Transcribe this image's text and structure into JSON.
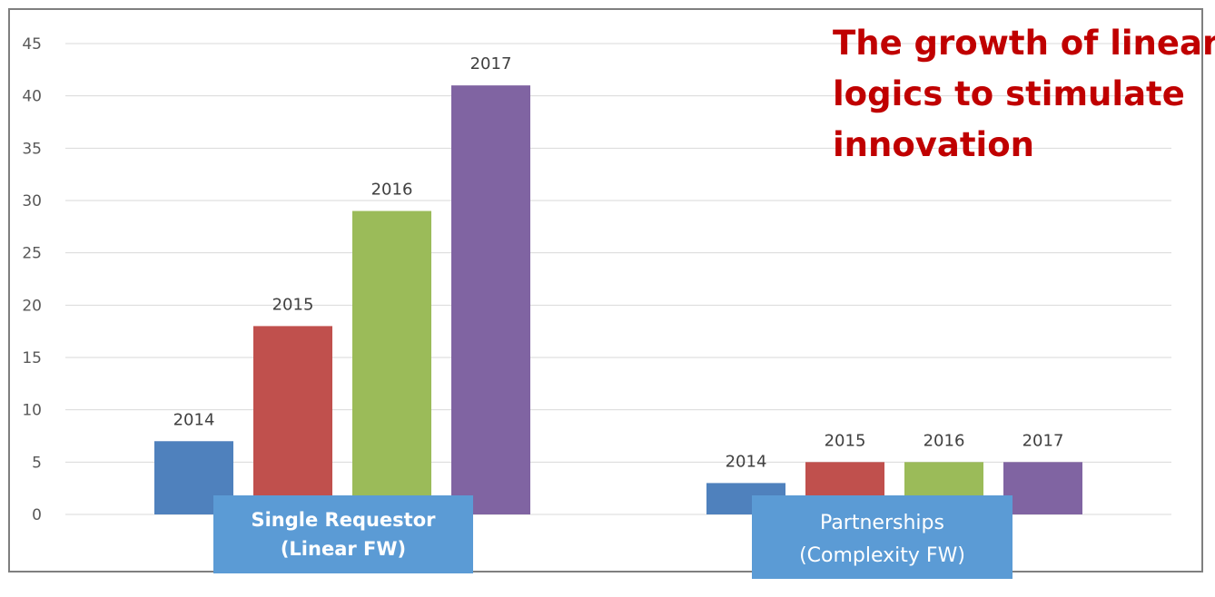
{
  "chart_data": {
    "type": "bar",
    "title": [
      "The growth of linear",
      "logics to stimulate",
      "innovation"
    ],
    "categories": [
      {
        "lines": [
          "Single Requestor",
          "(Linear FW)"
        ],
        "bold": true
      },
      {
        "lines": [
          "Partnerships",
          "(Complexity FW)"
        ],
        "bold": false
      }
    ],
    "series": [
      {
        "name": "2014",
        "color": "#4f81bd",
        "values": [
          7,
          3
        ]
      },
      {
        "name": "2015",
        "color": "#c0504d",
        "values": [
          18,
          5
        ]
      },
      {
        "name": "2016",
        "color": "#9bbb59",
        "values": [
          29,
          5
        ]
      },
      {
        "name": "2017",
        "color": "#8064a2",
        "values": [
          41,
          5
        ]
      }
    ],
    "ylim": [
      0,
      45
    ],
    "yticks": [
      0,
      5,
      10,
      15,
      20,
      25,
      30,
      35,
      40,
      45
    ],
    "grid": true,
    "label_box_color": "#5b9bd5"
  }
}
